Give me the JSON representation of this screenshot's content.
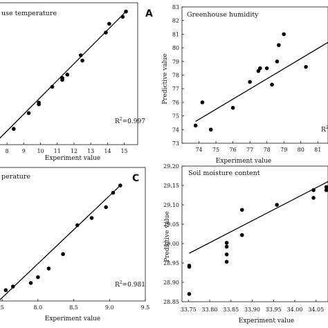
{
  "panels": [
    {
      "letter": "A",
      "title": "use temperature",
      "xlabel": "Experiment value",
      "ylabel": "",
      "r2": "0.997"
    },
    {
      "letter": "",
      "title": "Greenhouse humidity",
      "xlabel": "Experiment value",
      "ylabel": "Predictive value",
      "r2": ""
    },
    {
      "letter": "C",
      "title": "perature",
      "xlabel": "Experiment value",
      "ylabel": "",
      "r2": "0.981"
    },
    {
      "letter": "",
      "title": "Soil moisture content",
      "xlabel": "Experiment value",
      "ylabel": "Predictive value",
      "r2": ""
    }
  ],
  "chart_data": [
    {
      "type": "scatter",
      "title": "use temperature",
      "xlabel": "Experiment value",
      "ylabel": "",
      "xlim": [
        7.5,
        15.8
      ],
      "ylim": [
        7.5,
        15.6
      ],
      "xticks": [
        "8",
        "9",
        "10",
        "11",
        "12",
        "13",
        "14",
        "15"
      ],
      "yticks": [],
      "r2": "0.997",
      "points": [
        {
          "x": 8.4,
          "y": 8.4
        },
        {
          "x": 9.3,
          "y": 9.3
        },
        {
          "x": 9.9,
          "y": 9.8
        },
        {
          "x": 9.9,
          "y": 9.9
        },
        {
          "x": 10.7,
          "y": 10.8
        },
        {
          "x": 11.3,
          "y": 11.2
        },
        {
          "x": 11.3,
          "y": 11.3
        },
        {
          "x": 11.6,
          "y": 11.5
        },
        {
          "x": 12.4,
          "y": 12.6
        },
        {
          "x": 12.5,
          "y": 12.3
        },
        {
          "x": 13.9,
          "y": 13.9
        },
        {
          "x": 14.1,
          "y": 14.4
        },
        {
          "x": 14.9,
          "y": 14.8
        },
        {
          "x": 15.1,
          "y": 15.1
        }
      ],
      "fit": [
        {
          "x": 7.5,
          "y": 7.8
        },
        {
          "x": 15.1,
          "y": 15.1
        }
      ]
    },
    {
      "type": "scatter",
      "title": "Greenhouse humidity",
      "xlabel": "Experiment value",
      "ylabel": "Predictive value",
      "xlim": [
        73,
        81.6
      ],
      "ylim": [
        73,
        83
      ],
      "xticks": [
        "74",
        "75",
        "76",
        "77",
        "78",
        "79",
        "80",
        "81"
      ],
      "yticks": [
        "73",
        "74",
        "75",
        "76",
        "77",
        "78",
        "79",
        "80",
        "81",
        "82",
        "83"
      ],
      "r2": "",
      "points": [
        {
          "x": 73.8,
          "y": 74.3
        },
        {
          "x": 74.2,
          "y": 76.0
        },
        {
          "x": 74.7,
          "y": 74.0
        },
        {
          "x": 76.0,
          "y": 75.6
        },
        {
          "x": 77.0,
          "y": 77.5
        },
        {
          "x": 77.5,
          "y": 78.3
        },
        {
          "x": 77.6,
          "y": 78.5
        },
        {
          "x": 78.0,
          "y": 78.5
        },
        {
          "x": 78.3,
          "y": 77.3
        },
        {
          "x": 78.6,
          "y": 79.0
        },
        {
          "x": 78.7,
          "y": 80.2
        },
        {
          "x": 79.0,
          "y": 81.0
        },
        {
          "x": 80.3,
          "y": 78.6
        }
      ],
      "fit": [
        {
          "x": 73.8,
          "y": 74.6
        },
        {
          "x": 81.6,
          "y": 80.4
        }
      ]
    },
    {
      "type": "scatter",
      "title": "perature",
      "xlabel": "Experiment value",
      "ylabel": "",
      "xlim": [
        7.45,
        9.5
      ],
      "ylim": [
        7.45,
        9.3
      ],
      "xticks": [
        "5",
        "8.0",
        "8.5",
        "9.0",
        "9.5"
      ],
      "yticks": [],
      "r2": "0.981",
      "points": [
        {
          "x": 7.55,
          "y": 7.6
        },
        {
          "x": 7.65,
          "y": 7.65
        },
        {
          "x": 7.9,
          "y": 7.7
        },
        {
          "x": 8.0,
          "y": 7.78
        },
        {
          "x": 8.15,
          "y": 7.9
        },
        {
          "x": 8.35,
          "y": 8.1
        },
        {
          "x": 8.55,
          "y": 8.5
        },
        {
          "x": 8.75,
          "y": 8.6
        },
        {
          "x": 8.95,
          "y": 8.75
        },
        {
          "x": 9.05,
          "y": 8.95
        },
        {
          "x": 9.15,
          "y": 9.05
        }
      ],
      "fit": [
        {
          "x": 7.45,
          "y": 7.45
        },
        {
          "x": 9.15,
          "y": 9.05
        }
      ]
    },
    {
      "type": "scatter",
      "title": "Soil moisture content",
      "xlabel": "Experiment value",
      "ylabel": "Predictive value",
      "xlim": [
        33.735,
        34.078
      ],
      "ylim": [
        28.85,
        29.2
      ],
      "xticks": [
        "33.75",
        "33.80",
        "33.85",
        "33.90",
        "33.95",
        "34.00",
        "34.05"
      ],
      "yticks": [
        "28.85",
        "28.90",
        "28.95",
        "29.00",
        "29.05",
        "29.10",
        "29.15",
        "29.20"
      ],
      "r2": "",
      "points": [
        {
          "x": 33.752,
          "y": 28.87
        },
        {
          "x": 33.752,
          "y": 28.94
        },
        {
          "x": 33.752,
          "y": 28.943
        },
        {
          "x": 33.84,
          "y": 28.953
        },
        {
          "x": 33.84,
          "y": 28.972
        },
        {
          "x": 33.84,
          "y": 28.992
        },
        {
          "x": 33.84,
          "y": 29.002
        },
        {
          "x": 33.876,
          "y": 29.022
        },
        {
          "x": 33.876,
          "y": 29.087
        },
        {
          "x": 33.958,
          "y": 29.1
        },
        {
          "x": 34.044,
          "y": 29.118
        },
        {
          "x": 34.044,
          "y": 29.138
        },
        {
          "x": 34.074,
          "y": 29.138
        },
        {
          "x": 34.074,
          "y": 29.146
        }
      ],
      "fit": [
        {
          "x": 33.752,
          "y": 28.975
        },
        {
          "x": 34.078,
          "y": 29.16
        }
      ]
    }
  ]
}
